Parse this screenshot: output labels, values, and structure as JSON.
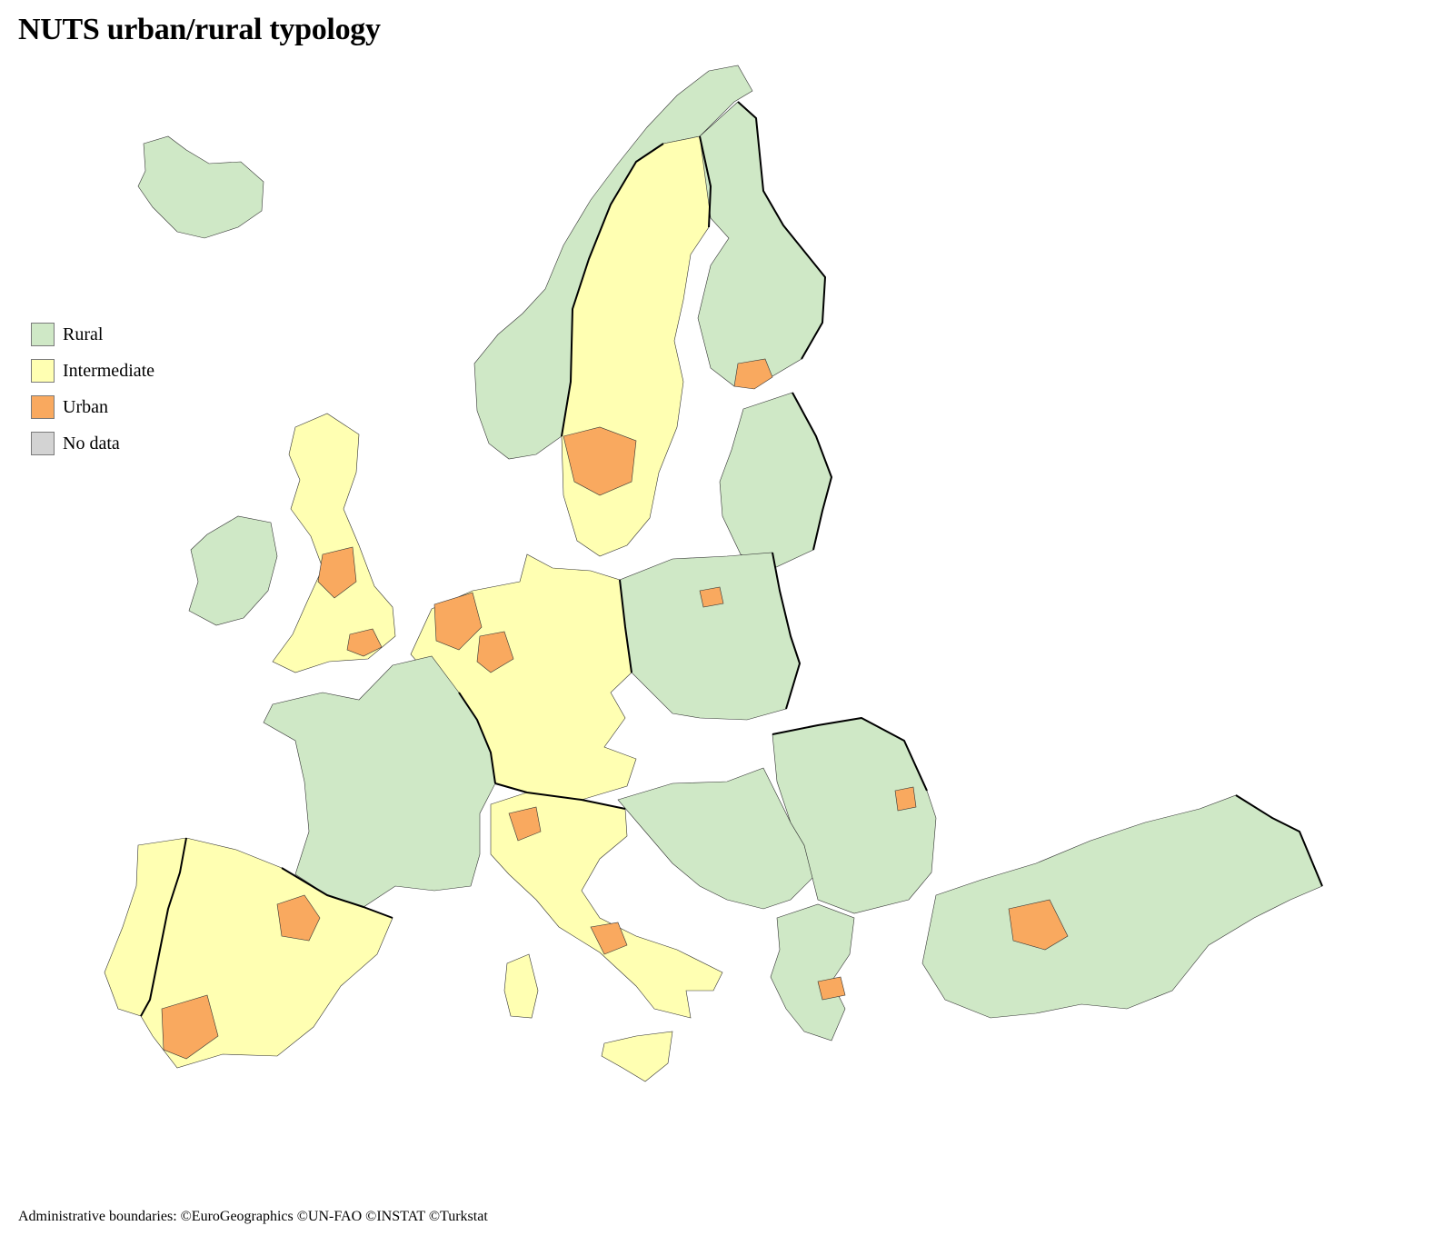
{
  "title": "NUTS urban/rural typology",
  "legend": {
    "items": [
      {
        "label": "Rural",
        "color": "#cfe8c6"
      },
      {
        "label": "Intermediate",
        "color": "#ffffb2"
      },
      {
        "label": "Urban",
        "color": "#f9a95f"
      },
      {
        "label": "No data",
        "color": "#d3d3d3"
      }
    ]
  },
  "footer": "Administrative boundaries: ©EuroGeographics ©UN-FAO ©INSTAT ©Turkstat",
  "map": {
    "regions": [
      {
        "name": "iceland",
        "class": "Rural"
      },
      {
        "name": "norway",
        "class": "Rural"
      },
      {
        "name": "sweden-north",
        "class": "Intermediate"
      },
      {
        "name": "finland",
        "class": "Rural"
      },
      {
        "name": "baltics",
        "class": "Rural"
      },
      {
        "name": "ireland",
        "class": "Rural"
      },
      {
        "name": "great-britain",
        "class": "Intermediate"
      },
      {
        "name": "benelux-germany",
        "class": "Intermediate"
      },
      {
        "name": "poland",
        "class": "Rural"
      },
      {
        "name": "france",
        "class": "Rural"
      },
      {
        "name": "iberia",
        "class": "Intermediate"
      },
      {
        "name": "italy",
        "class": "Intermediate"
      },
      {
        "name": "balkans",
        "class": "Rural"
      },
      {
        "name": "romania",
        "class": "Rural"
      },
      {
        "name": "greece",
        "class": "Rural"
      },
      {
        "name": "turkey",
        "class": "Rural"
      }
    ]
  }
}
